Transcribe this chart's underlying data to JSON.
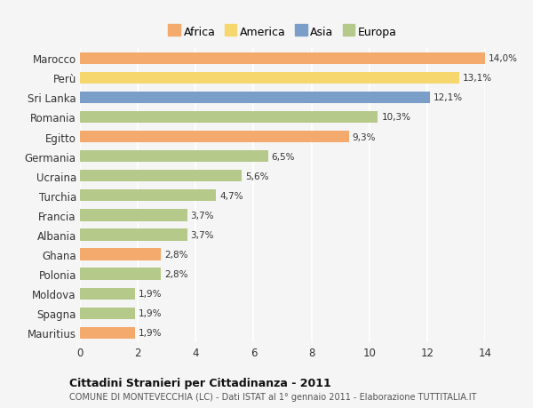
{
  "countries": [
    "Marocco",
    "Perù",
    "Sri Lanka",
    "Romania",
    "Egitto",
    "Germania",
    "Ucraina",
    "Turchia",
    "Francia",
    "Albania",
    "Ghana",
    "Polonia",
    "Moldova",
    "Spagna",
    "Mauritius"
  ],
  "values": [
    14.0,
    13.1,
    12.1,
    10.3,
    9.3,
    6.5,
    5.6,
    4.7,
    3.7,
    3.7,
    2.8,
    2.8,
    1.9,
    1.9,
    1.9
  ],
  "continents": [
    "Africa",
    "America",
    "Asia",
    "Europa",
    "Africa",
    "Europa",
    "Europa",
    "Europa",
    "Europa",
    "Europa",
    "Africa",
    "Europa",
    "Europa",
    "Europa",
    "Africa"
  ],
  "colors": {
    "Africa": "#F4A96D",
    "America": "#F5D76E",
    "Asia": "#7B9EC9",
    "Europa": "#B5C98A"
  },
  "legend_order": [
    "Africa",
    "America",
    "Asia",
    "Europa"
  ],
  "xlim": [
    0,
    14
  ],
  "xticks": [
    0,
    2,
    4,
    6,
    8,
    10,
    12,
    14
  ],
  "title": "Cittadini Stranieri per Cittadinanza - 2011",
  "subtitle": "COMUNE DI MONTEVECCHIA (LC) - Dati ISTAT al 1° gennaio 2011 - Elaborazione TUTTITALIA.IT",
  "background_color": "#f5f5f5",
  "grid_color": "#ffffff",
  "bar_height": 0.6
}
